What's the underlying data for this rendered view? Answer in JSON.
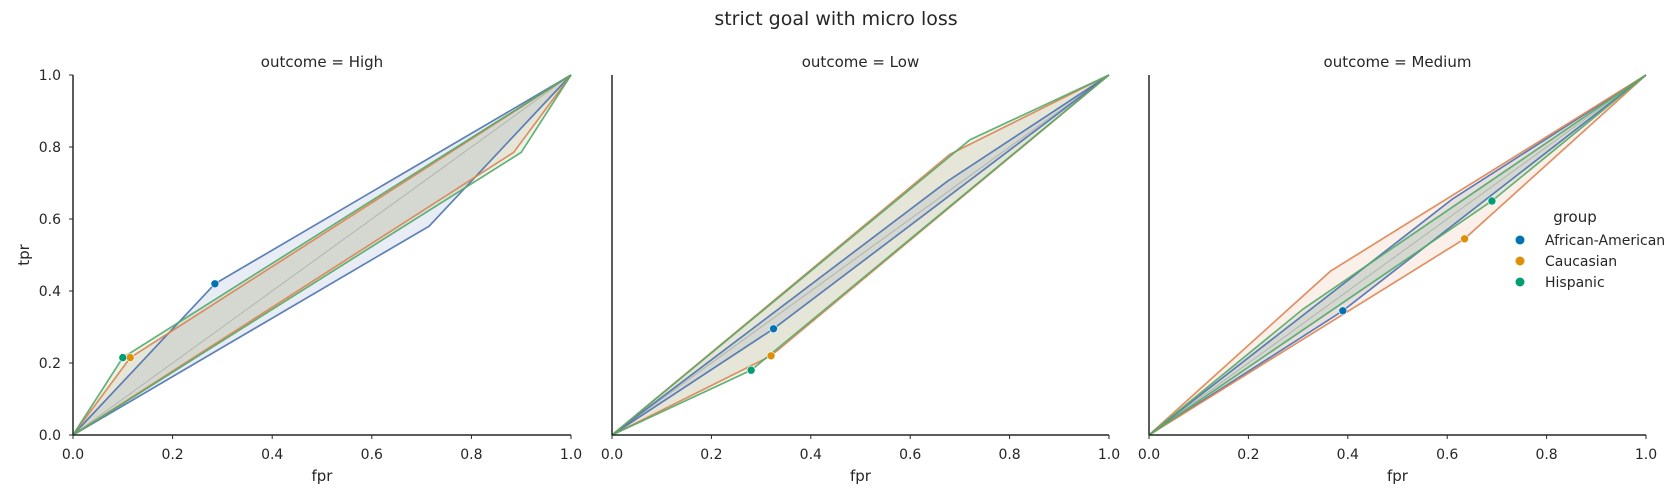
{
  "title": "strict goal with micro loss",
  "colors": {
    "African-American": "#0173b2",
    "Caucasian": "#de8f05",
    "Hispanic": "#029e73",
    "line_African-American": "#4c72b0",
    "line_Caucasian": "#dd8452",
    "line_Hispanic": "#55a868",
    "axis": "#262626",
    "diagonal": "#cccccc"
  },
  "legend": {
    "title": "group",
    "entries": [
      "African-American",
      "Caucasian",
      "Hispanic"
    ],
    "placement": "right"
  },
  "chart_data": [
    {
      "type": "line",
      "subplot_title": "outcome = High",
      "xlabel": "fpr",
      "ylabel": "tpr",
      "xlim": [
        0,
        1
      ],
      "ylim": [
        0,
        1
      ],
      "xticks": [
        "0.0",
        "0.2",
        "0.4",
        "0.6",
        "0.8",
        "1.0"
      ],
      "yticks": [
        "0.0",
        "0.2",
        "0.4",
        "0.6",
        "0.8",
        "1.0"
      ],
      "series": [
        {
          "name": "African-American",
          "point": [
            0.285,
            0.42
          ],
          "upper": [
            [
              0,
              0
            ],
            [
              0.285,
              0.42
            ],
            [
              1,
              1
            ]
          ],
          "lower": [
            [
              0,
              0
            ],
            [
              0.715,
              0.58
            ],
            [
              1,
              1
            ]
          ]
        },
        {
          "name": "Caucasian",
          "point": [
            0.115,
            0.215
          ],
          "upper": [
            [
              0,
              0
            ],
            [
              0.115,
              0.215
            ],
            [
              1,
              1
            ]
          ],
          "lower": [
            [
              0,
              0
            ],
            [
              0.885,
              0.785
            ],
            [
              1,
              1
            ]
          ]
        },
        {
          "name": "Hispanic",
          "point": [
            0.1,
            0.215
          ],
          "upper": [
            [
              0,
              0
            ],
            [
              0.1,
              0.215
            ],
            [
              1,
              1
            ]
          ],
          "lower": [
            [
              0,
              0
            ],
            [
              0.9,
              0.785
            ],
            [
              1,
              1
            ]
          ]
        }
      ]
    },
    {
      "type": "line",
      "subplot_title": "outcome = Low",
      "xlabel": "fpr",
      "ylabel": "",
      "xlim": [
        0,
        1
      ],
      "ylim": [
        0,
        1
      ],
      "xticks": [
        "0.0",
        "0.2",
        "0.4",
        "0.6",
        "0.8",
        "1.0"
      ],
      "yticks": [],
      "series": [
        {
          "name": "African-American",
          "point": [
            0.325,
            0.295
          ],
          "upper": [
            [
              0,
              0
            ],
            [
              0.675,
              0.705
            ],
            [
              1,
              1
            ]
          ],
          "lower": [
            [
              0,
              0
            ],
            [
              0.325,
              0.295
            ],
            [
              1,
              1
            ]
          ]
        },
        {
          "name": "Caucasian",
          "point": [
            0.32,
            0.22
          ],
          "upper": [
            [
              0,
              0
            ],
            [
              0.68,
              0.78
            ],
            [
              1,
              1
            ]
          ],
          "lower": [
            [
              0,
              0
            ],
            [
              0.32,
              0.22
            ],
            [
              1,
              1
            ]
          ]
        },
        {
          "name": "Hispanic",
          "point": [
            0.28,
            0.18
          ],
          "upper": [
            [
              0,
              0
            ],
            [
              0.72,
              0.82
            ],
            [
              1,
              1
            ]
          ],
          "lower": [
            [
              0,
              0
            ],
            [
              0.28,
              0.18
            ],
            [
              1,
              1
            ]
          ]
        }
      ]
    },
    {
      "type": "line",
      "subplot_title": "outcome = Medium",
      "xlabel": "fpr",
      "ylabel": "",
      "xlim": [
        0,
        1
      ],
      "ylim": [
        0,
        1
      ],
      "xticks": [
        "0.0",
        "0.2",
        "0.4",
        "0.6",
        "0.8",
        "1.0"
      ],
      "yticks": [],
      "series": [
        {
          "name": "African-American",
          "point": [
            0.39,
            0.345
          ],
          "upper": [
            [
              0,
              0
            ],
            [
              0.61,
              0.655
            ],
            [
              1,
              1
            ]
          ],
          "lower": [
            [
              0,
              0
            ],
            [
              0.39,
              0.345
            ],
            [
              1,
              1
            ]
          ]
        },
        {
          "name": "Caucasian",
          "point": [
            0.635,
            0.545
          ],
          "upper": [
            [
              0,
              0
            ],
            [
              0.365,
              0.455
            ],
            [
              1,
              1
            ]
          ],
          "lower": [
            [
              0,
              0
            ],
            [
              0.635,
              0.545
            ],
            [
              1,
              1
            ]
          ]
        },
        {
          "name": "Hispanic",
          "point": [
            0.69,
            0.65
          ],
          "upper": [
            [
              0,
              0
            ],
            [
              0.69,
              0.65
            ],
            [
              1,
              1
            ]
          ],
          "lower": [
            [
              0,
              0
            ],
            [
              0.31,
              0.35
            ],
            [
              1,
              1
            ]
          ]
        }
      ]
    }
  ]
}
